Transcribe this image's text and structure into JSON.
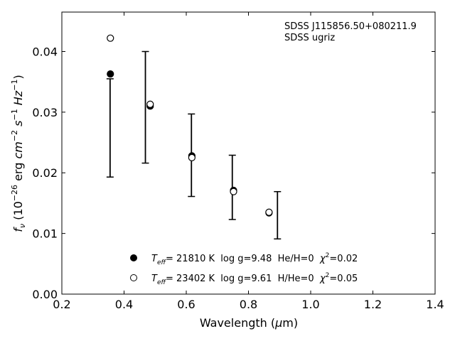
{
  "chart_data": {
    "type": "scatter",
    "title": "",
    "xlabel": "Wavelength (μm)",
    "ylabel": "f_ν (10^-26 erg cm^-2 s^-1 Hz^-1)",
    "xlim": [
      0.2,
      1.4
    ],
    "ylim": [
      0.0,
      0.0465
    ],
    "xticks": [
      0.2,
      0.4,
      0.6,
      0.8,
      1.0,
      1.2,
      1.4
    ],
    "xtick_labels": [
      "0.2",
      "0.4",
      "0.6",
      "0.8",
      "1.0",
      "1.2",
      "1.4"
    ],
    "yticks": [
      0.0,
      0.01,
      0.02,
      0.03,
      0.04
    ],
    "ytick_labels": [
      "0.00",
      "0.01",
      "0.02",
      "0.03",
      "0.04"
    ],
    "grid": false,
    "legend_position": "lower-center",
    "annotation": {
      "line1": "SDSS J115856.50+080211.9",
      "line2": "SDSS ugriz"
    },
    "observed": {
      "x": [
        0.3551,
        0.4686,
        0.6166,
        0.748,
        0.8932
      ],
      "y": [
        0.0274,
        0.0308,
        0.0229,
        0.0176,
        0.013
      ],
      "err": [
        0.0081,
        0.0092,
        0.0068,
        0.0053,
        0.0039
      ]
    },
    "series": [
      {
        "name": "T_eff= 21810 K  log g=9.48  He/H=0  χ²=0.02",
        "marker": "filled-circle",
        "x": [
          0.356,
          0.484,
          0.618,
          0.752,
          0.866
        ],
        "y": [
          0.0363,
          0.031,
          0.0228,
          0.0171,
          0.0134
        ]
      },
      {
        "name": "T_eff= 23402 K  log g=9.61  H/He=0  χ²=0.05",
        "marker": "open-circle",
        "x": [
          0.356,
          0.484,
          0.618,
          0.752,
          0.866
        ],
        "y": [
          0.0422,
          0.0313,
          0.0225,
          0.0169,
          0.0135
        ]
      }
    ],
    "legend": [
      {
        "teff_label": "T",
        "teff_sub": "eff",
        "text": "= 21810 K  log g=9.48  He/H=0  ",
        "chi": "χ",
        "chi_sup": "2",
        "chi_val": "=0.02"
      },
      {
        "teff_label": "T",
        "teff_sub": "eff",
        "text": "= 23402 K  log g=9.61  H/He=0  ",
        "chi": "χ",
        "chi_sup": "2",
        "chi_val": "=0.05"
      }
    ]
  }
}
